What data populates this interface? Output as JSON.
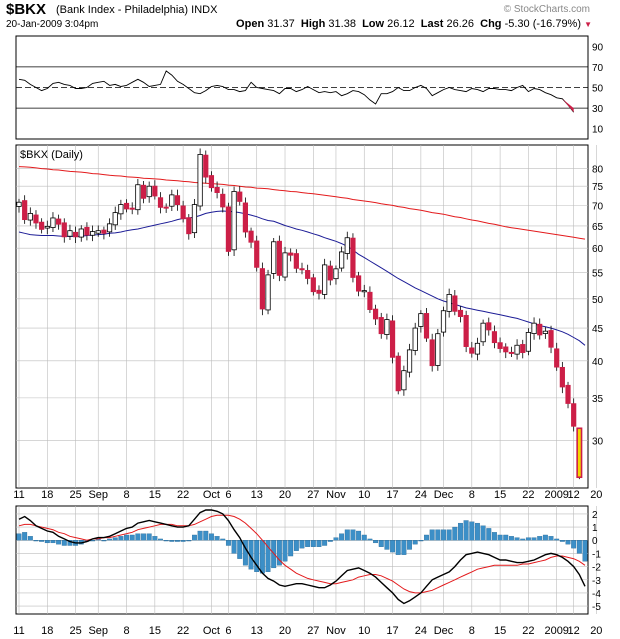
{
  "header": {
    "symbol": "$BKX",
    "description": "(Bank Index - Philadelphia)",
    "exchange": "INDX",
    "datetime": "20-Jan-2009 3:04pm",
    "watermark": "© StockCharts.com",
    "quote": [
      {
        "label": "Open",
        "value": "31.37"
      },
      {
        "label": "High",
        "value": "31.38"
      },
      {
        "label": "Low",
        "value": "26.12"
      },
      {
        "label": "Last",
        "value": "26.26"
      },
      {
        "label": "Chg",
        "value": "-5.30 (-16.79%)"
      }
    ],
    "down_marker": "▼"
  },
  "colors": {
    "up": "#000000",
    "down": "#cc1f47",
    "ma_long": "#e31a1c",
    "ma_short": "#1c1c96",
    "hist": "#3c8fc7",
    "signal": "#e31a1c",
    "macd": "#000000",
    "last_bar": "#f2d600"
  },
  "chart_data": [
    {
      "type": "line",
      "panel": "rsi",
      "y_ticks": [
        10,
        30,
        50,
        70,
        90
      ],
      "ylim": [
        0,
        100
      ],
      "reference_lines": [
        30,
        50,
        70
      ],
      "values": [
        58,
        57,
        53,
        50,
        47,
        49,
        54,
        55,
        53,
        52,
        49,
        49,
        50,
        54,
        55,
        56,
        52,
        53,
        51,
        52,
        55,
        58,
        55,
        51,
        52,
        53,
        66,
        62,
        56,
        53,
        49,
        45,
        44,
        47,
        51,
        52,
        51,
        48,
        48,
        46,
        47,
        55,
        50,
        49,
        48,
        47,
        44,
        49,
        49,
        46,
        48,
        51,
        48,
        45,
        46,
        45,
        46,
        42,
        44,
        47,
        46,
        43,
        38,
        34,
        44,
        44,
        46,
        50,
        47,
        47,
        50,
        52,
        49,
        42,
        45,
        48,
        50,
        48,
        47,
        46,
        49,
        48,
        46,
        49,
        49,
        48,
        48,
        47,
        50,
        52,
        46,
        49,
        48,
        45,
        43,
        40,
        39,
        33,
        26
      ]
    },
    {
      "type": "candlestick",
      "panel": "price",
      "label": "$BKX (Daily)",
      "y_ticks": [
        30,
        35,
        40,
        45,
        50,
        55,
        60,
        65,
        70,
        75,
        80
      ],
      "ylim": [
        25.3,
        87
      ],
      "y_scale": "log",
      "x_tick_labels": [
        "11",
        "18",
        "25",
        "Sep",
        "8",
        "15",
        "22",
        "Oct",
        "6",
        "13",
        "20",
        "27",
        "Nov",
        "10",
        "17",
        "24",
        "Dec",
        "8",
        "15",
        "22",
        "2009",
        "12",
        "20"
      ],
      "x_tick_bars": [
        0,
        5,
        10,
        14,
        19,
        24,
        29,
        34,
        37,
        42,
        47,
        52,
        56,
        61,
        66,
        71,
        75,
        80,
        85,
        90,
        95,
        98,
        102
      ],
      "closes": [
        70.8,
        66.5,
        68.0,
        65.7,
        64.2,
        64.9,
        66.9,
        65.4,
        62.5,
        63.9,
        62.5,
        64.3,
        62.9,
        63.7,
        63.9,
        63.3,
        65.5,
        68.2,
        70.2,
        69.1,
        69.3,
        75.4,
        71.8,
        75.0,
        72.4,
        69.5,
        69.4,
        72.7,
        70.2,
        66.7,
        63.2,
        70.2,
        84.1,
        77.5,
        74.6,
        73.3,
        69.6,
        59.3,
        73.6,
        71.0,
        63.6,
        61.3,
        56.0,
        48.2,
        54.5,
        61.4,
        54.4,
        59.0,
        58.5,
        55.8,
        55.7,
        53.8,
        51.3,
        51.0,
        56.5,
        53.5,
        55.7,
        59.2,
        62.3,
        54.0,
        51.4,
        51.5,
        48.1,
        46.5,
        44.1,
        46.4,
        40.5,
        35.9,
        38.6,
        41.6,
        45.0,
        47.4,
        43.4,
        39.3,
        44.1,
        47.9,
        50.8,
        47.8,
        46.9,
        42.1,
        41.1,
        42.6,
        45.8,
        44.7,
        42.7,
        41.8,
        41.3,
        41.2,
        42.3,
        41.2,
        44.3,
        45.8,
        43.9,
        44.5,
        42.0,
        39.1,
        36.4,
        34.3,
        31.6,
        26.3
      ],
      "series": [
        {
          "name": "MA long",
          "values": [
            80.5,
            80.4,
            80.3,
            80.1,
            79.9,
            79.8,
            79.6,
            79.5,
            79.3,
            79.1,
            79.0,
            78.9,
            78.7,
            78.5,
            78.4,
            78.2,
            78.0,
            77.9,
            77.8,
            77.6,
            77.5,
            77.4,
            77.2,
            77.1,
            77.0,
            76.9,
            76.7,
            76.6,
            76.5,
            76.3,
            76.2,
            76.0,
            75.9,
            75.8,
            75.7,
            75.6,
            75.5,
            75.3,
            75.2,
            75.0,
            74.8,
            74.7,
            74.5,
            74.4,
            74.3,
            74.1,
            73.9,
            73.8,
            73.6,
            73.5,
            73.3,
            73.1,
            73.0,
            72.8,
            72.6,
            72.4,
            72.2,
            72.0,
            71.8,
            71.5,
            71.3,
            71.1,
            70.9,
            70.7,
            70.4,
            70.2,
            70.0,
            69.7,
            69.5,
            69.2,
            69.0,
            68.8,
            68.5,
            68.2,
            68.0,
            67.8,
            67.5,
            67.2,
            67.0,
            66.7,
            66.4,
            66.2,
            65.9,
            65.6,
            65.4,
            65.1,
            64.8,
            64.6,
            64.4,
            64.2,
            64.0,
            63.8,
            63.6,
            63.4,
            63.2,
            63.0,
            62.8,
            62.6,
            62.4,
            62.2,
            62.0
          ]
        },
        {
          "name": "MA short",
          "values": [
            63.6,
            63.3,
            63.0,
            62.9,
            62.8,
            62.8,
            62.8,
            62.7,
            62.6,
            62.6,
            62.6,
            62.6,
            62.8,
            62.9,
            63.0,
            63.1,
            63.3,
            63.4,
            63.6,
            63.9,
            64.1,
            64.3,
            64.6,
            64.9,
            65.2,
            65.5,
            65.8,
            66.1,
            66.5,
            66.8,
            66.9,
            67.1,
            67.5,
            68.0,
            68.3,
            68.5,
            68.6,
            68.5,
            68.4,
            68.2,
            67.9,
            67.6,
            67.2,
            66.7,
            66.3,
            66.1,
            65.6,
            65.1,
            64.7,
            64.3,
            64.0,
            63.6,
            63.2,
            62.8,
            62.3,
            61.9,
            61.5,
            61.0,
            60.4,
            59.6,
            58.7,
            58.0,
            57.3,
            56.6,
            55.9,
            55.2,
            54.5,
            53.8,
            53.2,
            52.6,
            52.0,
            51.5,
            51.0,
            50.5,
            50.0,
            49.6,
            49.3,
            49.0,
            48.7,
            48.4,
            48.2,
            48.0,
            47.8,
            47.6,
            47.4,
            47.2,
            47.0,
            46.8,
            46.6,
            46.3,
            46.0,
            45.7,
            45.4,
            45.2,
            45.0,
            44.7,
            44.4,
            44.0,
            43.5,
            43.0,
            42.3
          ]
        }
      ]
    },
    {
      "type": "line",
      "panel": "macd",
      "y_ticks": [
        2,
        1,
        0,
        -1,
        -2,
        -3,
        -4,
        -5
      ],
      "ylim": [
        -5.6,
        2.6
      ],
      "x_tick_labels": [
        "11",
        "18",
        "25",
        "Sep",
        "8",
        "15",
        "22",
        "Oct",
        "6",
        "13",
        "20",
        "27",
        "Nov",
        "10",
        "17",
        "24",
        "Dec",
        "8",
        "15",
        "22",
        "2009",
        "12",
        "20"
      ],
      "series": [
        {
          "name": "MACD",
          "values": [
            1.6,
            1.8,
            1.5,
            1.1,
            0.9,
            0.7,
            0.6,
            0.3,
            0.1,
            -0.1,
            -0.2,
            -0.2,
            -0.1,
            0.1,
            0.2,
            0.2,
            0.3,
            0.5,
            0.7,
            0.9,
            1.0,
            1.3,
            1.4,
            1.5,
            1.4,
            1.3,
            1.2,
            1.1,
            1.0,
            1.0,
            1.1,
            1.6,
            2.1,
            2.3,
            2.3,
            2.2,
            2.0,
            1.5,
            0.8,
            0.2,
            -0.6,
            -1.3,
            -1.9,
            -2.5,
            -2.9,
            -3.1,
            -3.4,
            -3.5,
            -3.4,
            -3.3,
            -3.3,
            -3.4,
            -3.5,
            -3.6,
            -3.6,
            -3.4,
            -3.1,
            -2.7,
            -2.3,
            -2.2,
            -2.1,
            -2.3,
            -2.5,
            -2.8,
            -3.2,
            -3.6,
            -4.0,
            -4.5,
            -4.8,
            -4.6,
            -4.3,
            -4.0,
            -3.5,
            -3.0,
            -2.8,
            -2.6,
            -2.4,
            -2.0,
            -1.5,
            -1.1,
            -1.0,
            -0.9,
            -1.0,
            -1.1,
            -1.3,
            -1.5,
            -1.5,
            -1.6,
            -1.7,
            -1.7,
            -1.6,
            -1.5,
            -1.3,
            -1.1,
            -1.0,
            -1.1,
            -1.3,
            -1.6,
            -2.0,
            -2.6,
            -3.5
          ]
        },
        {
          "name": "Signal",
          "values": [
            1.1,
            1.2,
            1.2,
            1.1,
            1.0,
            0.9,
            0.8,
            0.6,
            0.5,
            0.3,
            0.2,
            0.1,
            0.0,
            0.1,
            0.1,
            0.2,
            0.2,
            0.3,
            0.4,
            0.5,
            0.6,
            0.8,
            0.9,
            1.0,
            1.1,
            1.2,
            1.2,
            1.2,
            1.1,
            1.1,
            1.1,
            1.2,
            1.4,
            1.6,
            1.8,
            1.9,
            1.9,
            1.9,
            1.8,
            1.6,
            1.3,
            0.9,
            0.5,
            0.0,
            -0.5,
            -1.0,
            -1.5,
            -1.9,
            -2.2,
            -2.5,
            -2.7,
            -2.9,
            -3.0,
            -3.1,
            -3.2,
            -3.3,
            -3.3,
            -3.2,
            -3.1,
            -3.0,
            -2.8,
            -2.7,
            -2.6,
            -2.6,
            -2.7,
            -2.9,
            -3.1,
            -3.4,
            -3.7,
            -3.9,
            -4.0,
            -4.0,
            -3.9,
            -3.8,
            -3.6,
            -3.4,
            -3.2,
            -3.0,
            -2.8,
            -2.6,
            -2.4,
            -2.2,
            -2.1,
            -2.0,
            -1.9,
            -1.9,
            -1.9,
            -1.9,
            -1.9,
            -1.8,
            -1.8,
            -1.7,
            -1.6,
            -1.5,
            -1.3,
            -1.2,
            -1.2,
            -1.3,
            -1.4,
            -1.6,
            -1.9
          ]
        }
      ]
    }
  ]
}
